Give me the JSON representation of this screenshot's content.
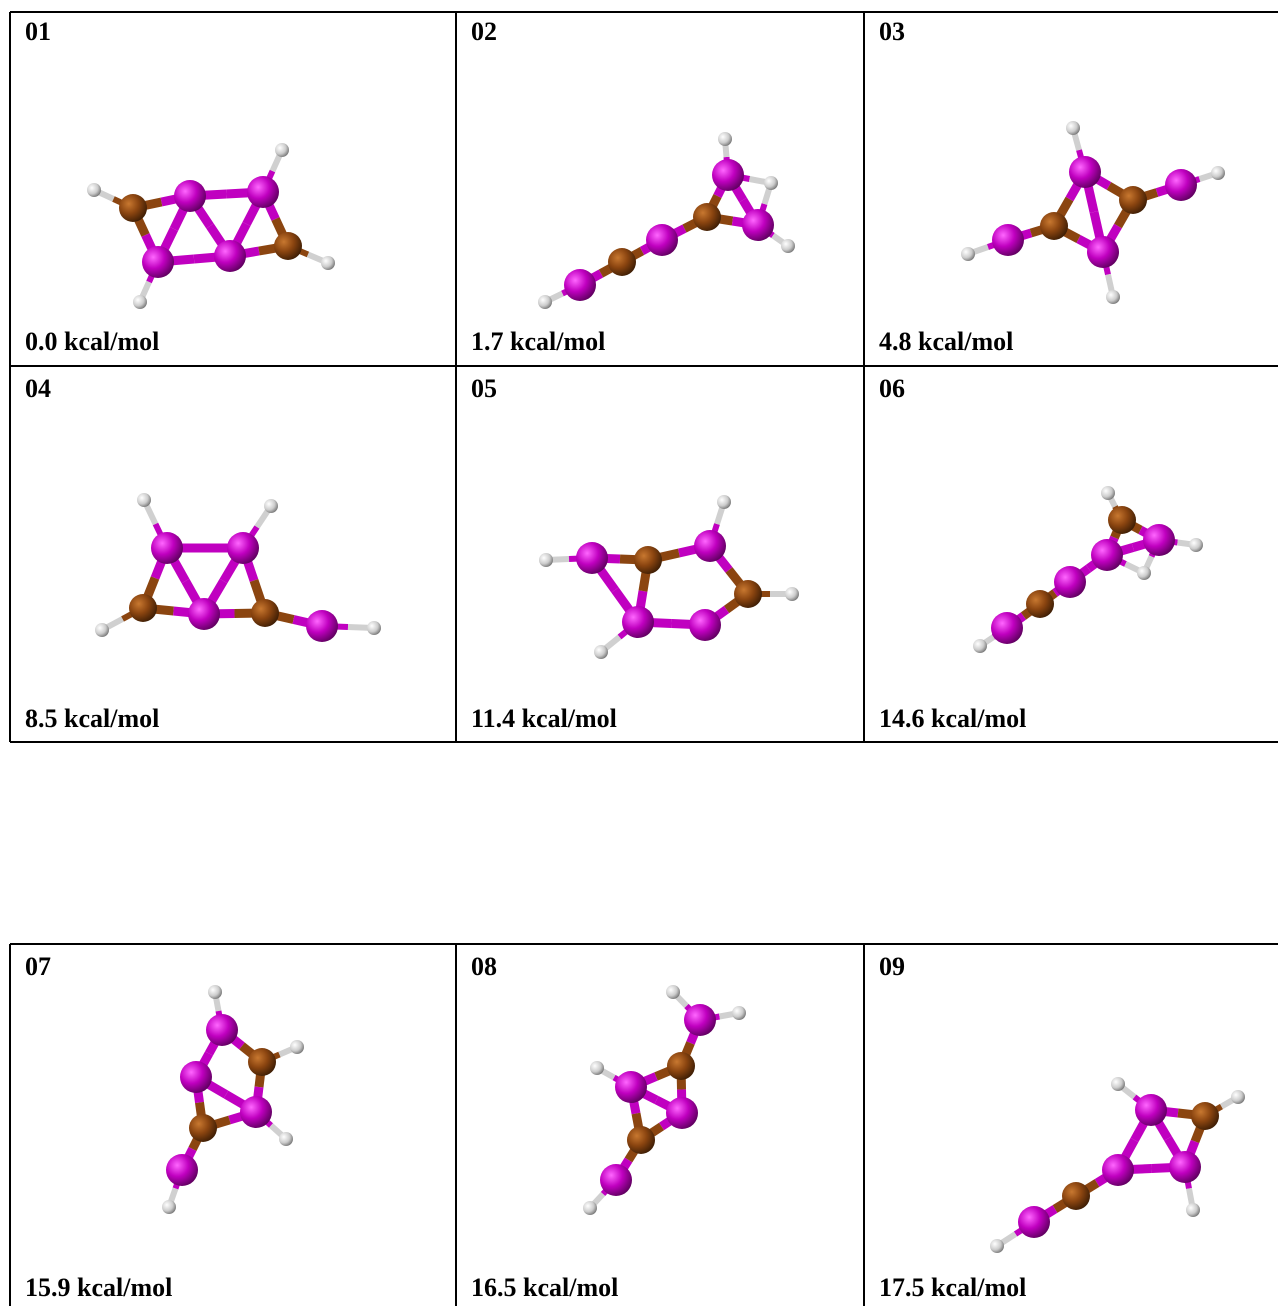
{
  "panels": [
    {
      "id": "01",
      "energy": "0.0 kcal/mol"
    },
    {
      "id": "02",
      "energy": "1.7 kcal/mol"
    },
    {
      "id": "03",
      "energy": "4.8 kcal/mol"
    },
    {
      "id": "04",
      "energy": "8.5 kcal/mol"
    },
    {
      "id": "05",
      "energy": "11.4 kcal/mol"
    },
    {
      "id": "06",
      "energy": "14.6 kcal/mol"
    },
    {
      "id": "07",
      "energy": "15.9 kcal/mol"
    },
    {
      "id": "08",
      "energy": "16.5 kcal/mol"
    },
    {
      "id": "09",
      "energy": "17.5 kcal/mol"
    }
  ]
}
